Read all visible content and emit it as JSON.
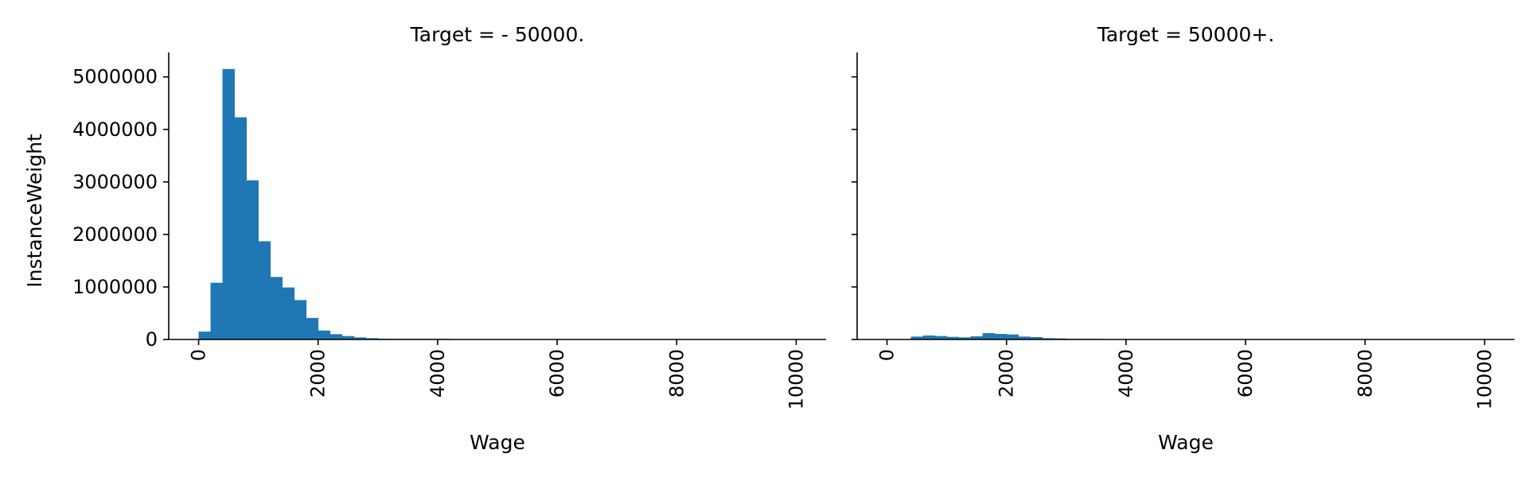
{
  "chart_data": [
    {
      "type": "bar",
      "title": "Target =  - 50000.",
      "xlabel": "Wage",
      "ylabel": "InstanceWeight",
      "xlim": [
        -500,
        10500
      ],
      "ylim": [
        0,
        5450000
      ],
      "xticks": [
        "0",
        "2000",
        "4000",
        "6000",
        "8000",
        "10000"
      ],
      "yticks": [
        "0",
        "1000000",
        "2000000",
        "3000000",
        "4000000",
        "5000000"
      ],
      "bins": [
        {
          "start": 0,
          "end": 200,
          "value": 150000
        },
        {
          "start": 200,
          "end": 400,
          "value": 1080000
        },
        {
          "start": 400,
          "end": 600,
          "value": 5150000
        },
        {
          "start": 600,
          "end": 800,
          "value": 4230000
        },
        {
          "start": 800,
          "end": 1000,
          "value": 3030000
        },
        {
          "start": 1000,
          "end": 1200,
          "value": 1870000
        },
        {
          "start": 1200,
          "end": 1400,
          "value": 1190000
        },
        {
          "start": 1400,
          "end": 1600,
          "value": 990000
        },
        {
          "start": 1600,
          "end": 1800,
          "value": 750000
        },
        {
          "start": 1800,
          "end": 2000,
          "value": 410000
        },
        {
          "start": 2000,
          "end": 2200,
          "value": 170000
        },
        {
          "start": 2200,
          "end": 2400,
          "value": 100000
        },
        {
          "start": 2400,
          "end": 2600,
          "value": 65000
        },
        {
          "start": 2600,
          "end": 2800,
          "value": 40000
        },
        {
          "start": 2800,
          "end": 3000,
          "value": 25000
        },
        {
          "start": 3000,
          "end": 3200,
          "value": 15000
        },
        {
          "start": 3200,
          "end": 3400,
          "value": 8000
        },
        {
          "start": 3400,
          "end": 3600,
          "value": 6000
        },
        {
          "start": 3600,
          "end": 3800,
          "value": 4000
        },
        {
          "start": 3800,
          "end": 4000,
          "value": 3000
        },
        {
          "start": 4000,
          "end": 4200,
          "value": 2000
        }
      ],
      "color": "#1f77b4",
      "grid": false
    },
    {
      "type": "bar",
      "title": "Target =  50000+.",
      "xlabel": "Wage",
      "ylabel": "",
      "xlim": [
        -500,
        10500
      ],
      "ylim": [
        0,
        5450000
      ],
      "xticks": [
        "0",
        "2000",
        "4000",
        "6000",
        "8000",
        "10000"
      ],
      "yticks": [],
      "bins": [
        {
          "start": 400,
          "end": 600,
          "value": 55000
        },
        {
          "start": 600,
          "end": 800,
          "value": 75000
        },
        {
          "start": 800,
          "end": 1000,
          "value": 65000
        },
        {
          "start": 1000,
          "end": 1200,
          "value": 50000
        },
        {
          "start": 1200,
          "end": 1400,
          "value": 40000
        },
        {
          "start": 1400,
          "end": 1600,
          "value": 60000
        },
        {
          "start": 1600,
          "end": 1800,
          "value": 120000
        },
        {
          "start": 1800,
          "end": 2000,
          "value": 105000
        },
        {
          "start": 2000,
          "end": 2200,
          "value": 95000
        },
        {
          "start": 2200,
          "end": 2400,
          "value": 55000
        },
        {
          "start": 2400,
          "end": 2600,
          "value": 45000
        },
        {
          "start": 2600,
          "end": 2800,
          "value": 25000
        },
        {
          "start": 2800,
          "end": 3000,
          "value": 20000
        },
        {
          "start": 3000,
          "end": 3200,
          "value": 10000
        },
        {
          "start": 3200,
          "end": 3400,
          "value": 5000
        },
        {
          "start": 3400,
          "end": 3600,
          "value": 3000
        }
      ],
      "color": "#1f77b4",
      "grid": false
    }
  ]
}
